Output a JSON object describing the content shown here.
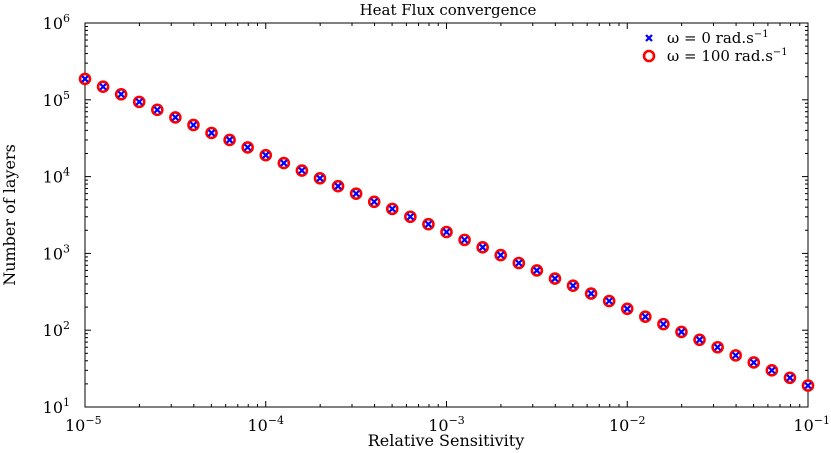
{
  "chart_data": {
    "type": "scatter",
    "title": "Heat Flux convergence",
    "xlabel": "Relative Sensitivity",
    "ylabel": "Number of layers",
    "xscale": "log",
    "yscale": "log",
    "xlim": [
      1e-05,
      0.1
    ],
    "ylim": [
      10,
      1000000
    ],
    "x_ticks": [
      {
        "value": 1e-05,
        "base": "10",
        "exp": "−5"
      },
      {
        "value": 0.0001,
        "base": "10",
        "exp": "−4"
      },
      {
        "value": 0.001,
        "base": "10",
        "exp": "−3"
      },
      {
        "value": 0.01,
        "base": "10",
        "exp": "−2"
      },
      {
        "value": 0.1,
        "base": "10",
        "exp": "−1"
      }
    ],
    "y_ticks": [
      {
        "value": 10,
        "base": "10",
        "exp": "1"
      },
      {
        "value": 100,
        "base": "10",
        "exp": "2"
      },
      {
        "value": 1000,
        "base": "10",
        "exp": "3"
      },
      {
        "value": 10000,
        "base": "10",
        "exp": "4"
      },
      {
        "value": 100000,
        "base": "10",
        "exp": "5"
      },
      {
        "value": 1000000,
        "base": "10",
        "exp": "6"
      }
    ],
    "legend": {
      "position": "top-right",
      "entries": [
        {
          "series": "omega0",
          "prefix": "ω = 0 rad.s",
          "sup": "−1"
        },
        {
          "series": "omega100",
          "prefix": "ω = 100 rad.s",
          "sup": "−1"
        }
      ]
    },
    "series": [
      {
        "id": "omega100",
        "name": "ω = 100 rad.s−1",
        "marker": "circle",
        "color": "#ff0000",
        "x": [
          1e-05,
          1.259e-05,
          1.585e-05,
          1.995e-05,
          2.512e-05,
          3.162e-05,
          3.981e-05,
          5.012e-05,
          6.31e-05,
          7.943e-05,
          0.0001,
          0.0001259,
          0.0001585,
          0.0001995,
          0.0002512,
          0.0003162,
          0.0003981,
          0.0005012,
          0.000631,
          0.0007943,
          0.001,
          0.001259,
          0.001585,
          0.001995,
          0.002512,
          0.003162,
          0.003981,
          0.005012,
          0.00631,
          0.007943,
          0.01,
          0.01259,
          0.01585,
          0.01995,
          0.02512,
          0.03162,
          0.03981,
          0.05012,
          0.0631,
          0.07943,
          0.1
        ],
        "y": [
          187000,
          148000,
          118000,
          94000,
          74000,
          59000,
          47000,
          37000,
          30000,
          24000,
          19000,
          15000,
          12000,
          9500,
          7500,
          6000,
          4700,
          3800,
          3000,
          2400,
          1900,
          1500,
          1200,
          950,
          750,
          600,
          470,
          380,
          300,
          240,
          190,
          150,
          120,
          95,
          75,
          60,
          47,
          38,
          30,
          24,
          19
        ]
      },
      {
        "id": "omega0",
        "name": "ω = 0 rad.s−1",
        "marker": "x",
        "color": "#0000ff",
        "x": [
          1e-05,
          1.259e-05,
          1.585e-05,
          1.995e-05,
          2.512e-05,
          3.162e-05,
          3.981e-05,
          5.012e-05,
          6.31e-05,
          7.943e-05,
          0.0001,
          0.0001259,
          0.0001585,
          0.0001995,
          0.0002512,
          0.0003162,
          0.0003981,
          0.0005012,
          0.000631,
          0.0007943,
          0.001,
          0.001259,
          0.001585,
          0.001995,
          0.002512,
          0.003162,
          0.003981,
          0.005012,
          0.00631,
          0.007943,
          0.01,
          0.01259,
          0.01585,
          0.01995,
          0.02512,
          0.03162,
          0.03981,
          0.05012,
          0.0631,
          0.07943,
          0.1
        ],
        "y": [
          187000,
          148000,
          118000,
          94000,
          74000,
          59000,
          47000,
          37000,
          30000,
          24000,
          19000,
          15000,
          12000,
          9500,
          7500,
          6000,
          4700,
          3800,
          3000,
          2400,
          1900,
          1500,
          1200,
          950,
          750,
          600,
          470,
          380,
          300,
          240,
          190,
          150,
          120,
          95,
          75,
          60,
          47,
          38,
          30,
          24,
          19
        ]
      }
    ]
  }
}
